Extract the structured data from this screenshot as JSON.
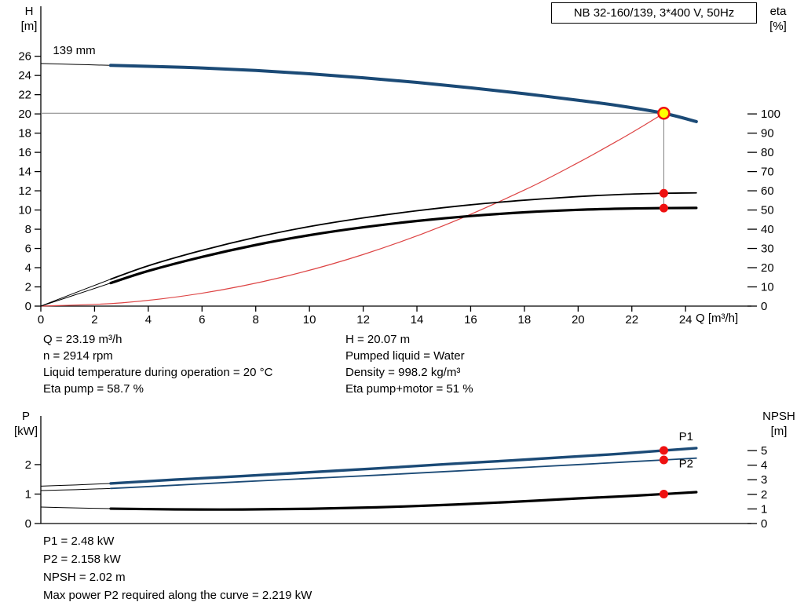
{
  "title_box": "NB 32-160/139, 3*400 V, 50Hz",
  "top_chart": {
    "ylabel_left_1": "H",
    "ylabel_left_2": "[m]",
    "ylabel_right_1": "eta",
    "ylabel_right_2": "[%]",
    "xlabel": "Q [m³/h]",
    "curve_label": "139 mm"
  },
  "bottom_chart": {
    "ylabel_left_1": "P",
    "ylabel_left_2": "[kW]",
    "ylabel_right_1": "NPSH",
    "ylabel_right_2": "[m]"
  },
  "operating_conditions": {
    "left": [
      "Q = 23.19 m³/h",
      "n = 2914 rpm",
      "Liquid temperature during operation = 20 °C",
      "Eta pump = 58.7 %"
    ],
    "right": [
      "H = 20.07 m",
      "Pumped liquid = Water",
      "Density = 998.2 kg/m³",
      "Eta pump+motor = 51 %"
    ]
  },
  "results": [
    "P1 = 2.48 kW",
    "P2 = 2.158 kW",
    "NPSH = 2.02 m",
    "Max power P2 required along the curve = 2.219 kW"
  ],
  "chart_data": [
    {
      "type": "line",
      "title": "NB 32-160/139, 3*400 V, 50Hz",
      "xlabel": "Q [m³/h]",
      "ylabel_left": "H [m]",
      "ylabel_right": "eta [%]",
      "grid": false,
      "xlim": [
        0,
        26.45
      ],
      "x_ticks": [
        0,
        2,
        4,
        6,
        8,
        10,
        12,
        14,
        16,
        18,
        20,
        22,
        24
      ],
      "ylim_left": [
        0,
        31.2
      ],
      "y_ticks_left": [
        0,
        2,
        4,
        6,
        8,
        10,
        12,
        14,
        16,
        18,
        20,
        22,
        24,
        26
      ],
      "ylim_right": [
        0,
        156
      ],
      "y_ticks_right": [
        0,
        10,
        20,
        30,
        40,
        50,
        60,
        70,
        80,
        90,
        100
      ],
      "duty_point": {
        "q_m3h": 23.19,
        "h_m": 20.07,
        "eta_pump_pct": 58.7,
        "eta_pump_motor_pct": 51
      },
      "series": [
        {
          "name": "pump-curve-lead",
          "axis": "left",
          "color": "#000000",
          "width": 1,
          "points": [
            [
              0,
              25.25
            ],
            [
              1.3,
              25.15
            ],
            [
              2.6,
              25.05
            ]
          ]
        },
        {
          "name": "pump-curve-139mm",
          "axis": "left",
          "color": "#1b4a76",
          "width": 4,
          "points": [
            [
              2.6,
              25.05
            ],
            [
              4,
              24.95
            ],
            [
              6,
              24.78
            ],
            [
              8,
              24.52
            ],
            [
              10,
              24.18
            ],
            [
              12,
              23.76
            ],
            [
              14,
              23.28
            ],
            [
              16,
              22.72
            ],
            [
              18,
              22.1
            ],
            [
              20,
              21.42
            ],
            [
              21.6,
              20.82
            ],
            [
              23.19,
              20.07
            ],
            [
              24.4,
              19.2
            ]
          ]
        },
        {
          "name": "system-curve",
          "axis": "left",
          "color": "#dd4444",
          "width": 1.2,
          "points": [
            [
              0,
              0
            ],
            [
              3,
              0.34
            ],
            [
              6,
              1.34
            ],
            [
              9,
              3.02
            ],
            [
              12,
              5.37
            ],
            [
              15,
              8.39
            ],
            [
              18,
              12.08
            ],
            [
              20,
              14.93
            ],
            [
              21.6,
              17.41
            ],
            [
              22.5,
              18.89
            ],
            [
              23.19,
              20.07
            ]
          ]
        },
        {
          "name": "eta-pump-lead",
          "axis": "right",
          "color": "#000000",
          "width": 1,
          "points": [
            [
              0,
              0
            ],
            [
              1.2,
              6.5
            ],
            [
              2.6,
              14
            ]
          ]
        },
        {
          "name": "eta-pump-curve",
          "axis": "right",
          "color": "#000000",
          "width": 1.8,
          "points": [
            [
              2.6,
              14
            ],
            [
              4,
              21
            ],
            [
              6,
              29
            ],
            [
              8,
              35.8
            ],
            [
              10,
              41.4
            ],
            [
              12,
              45.9
            ],
            [
              14,
              49.6
            ],
            [
              16,
              52.7
            ],
            [
              18,
              55.1
            ],
            [
              20,
              57
            ],
            [
              21.6,
              58.1
            ],
            [
              23.19,
              58.7
            ],
            [
              24.4,
              58.9
            ]
          ]
        },
        {
          "name": "eta-pump-motor-lead",
          "axis": "right",
          "color": "#000000",
          "width": 1,
          "points": [
            [
              0,
              0
            ],
            [
              1.2,
              5.5
            ],
            [
              2.6,
              12
            ]
          ]
        },
        {
          "name": "eta-pump-motor-curve",
          "axis": "right",
          "color": "#000000",
          "width": 3.2,
          "points": [
            [
              2.6,
              12
            ],
            [
              4,
              18.3
            ],
            [
              6,
              25.6
            ],
            [
              8,
              31.8
            ],
            [
              10,
              36.9
            ],
            [
              12,
              41
            ],
            [
              14,
              44.3
            ],
            [
              16,
              46.9
            ],
            [
              18,
              48.8
            ],
            [
              20,
              50.1
            ],
            [
              21.6,
              50.7
            ],
            [
              23.19,
              51
            ],
            [
              24.4,
              51.1
            ]
          ]
        }
      ],
      "guides": [
        {
          "axis": "left",
          "from": [
            0,
            20.07
          ],
          "to": [
            23.19,
            20.07
          ]
        },
        {
          "axis": "left",
          "from": [
            23.19,
            20.07
          ],
          "to": [
            23.19,
            10.15
          ]
        }
      ],
      "markers": [
        {
          "name": "eta-pump-point",
          "axis": "right",
          "x": 23.19,
          "y": 58.7,
          "r": 5.5,
          "fill": "#ee1111"
        },
        {
          "name": "eta-pump-motor-point",
          "axis": "right",
          "x": 23.19,
          "y": 51,
          "r": 5.5,
          "fill": "#ee1111"
        },
        {
          "name": "duty-point",
          "axis": "left",
          "x": 23.19,
          "y": 20.07,
          "r": 7,
          "fill": "#ffff00",
          "stroke": "#ee1111",
          "stroke_width": 2.5
        }
      ],
      "annotations": [
        {
          "name": "impeller-diameter-label",
          "text": "139 mm",
          "axis": "left",
          "x": 0.45,
          "y": 26.2,
          "color": "#000000"
        }
      ]
    },
    {
      "type": "line",
      "title": "",
      "xlabel": "",
      "ylabel_left": "P [kW]",
      "ylabel_right": "NPSH [m]",
      "grid": false,
      "xlim": [
        0,
        26.45
      ],
      "x_ticks": [],
      "ylim_left": [
        0,
        3.65
      ],
      "y_ticks_left": [
        0,
        1,
        2
      ],
      "ylim_right": [
        0,
        7.37
      ],
      "y_ticks_right": [
        0,
        1,
        2,
        3,
        4,
        5
      ],
      "duty_point": {
        "q_m3h": 23.19,
        "p1_kw": 2.48,
        "p2_kw": 2.158,
        "npsh_m": 2.02
      },
      "series": [
        {
          "name": "p1-lead",
          "axis": "left",
          "color": "#000000",
          "width": 1,
          "points": [
            [
              0,
              1.27
            ],
            [
              1.3,
              1.31
            ],
            [
              2.6,
              1.36
            ]
          ]
        },
        {
          "name": "p1-curve",
          "axis": "left",
          "color": "#1b4a76",
          "width": 3.4,
          "points": [
            [
              2.6,
              1.36
            ],
            [
              5,
              1.49
            ],
            [
              7.5,
              1.61
            ],
            [
              10,
              1.74
            ],
            [
              12.5,
              1.87
            ],
            [
              15,
              2.01
            ],
            [
              17.5,
              2.14
            ],
            [
              20,
              2.28
            ],
            [
              21.6,
              2.37
            ],
            [
              23.19,
              2.48
            ],
            [
              24.4,
              2.56
            ]
          ]
        },
        {
          "name": "p2-lead",
          "axis": "left",
          "color": "#000000",
          "width": 1,
          "points": [
            [
              0,
              1.12
            ],
            [
              1.3,
              1.15
            ],
            [
              2.6,
              1.19
            ]
          ]
        },
        {
          "name": "p2-curve",
          "axis": "left",
          "color": "#1b4a76",
          "width": 1.8,
          "points": [
            [
              2.6,
              1.19
            ],
            [
              5,
              1.3
            ],
            [
              7.5,
              1.42
            ],
            [
              10,
              1.53
            ],
            [
              12.5,
              1.64
            ],
            [
              15,
              1.76
            ],
            [
              17.5,
              1.88
            ],
            [
              20,
              2.0
            ],
            [
              21.6,
              2.08
            ],
            [
              23.19,
              2.158
            ],
            [
              24.4,
              2.22
            ]
          ]
        },
        {
          "name": "npsh-lead",
          "axis": "right",
          "color": "#000000",
          "width": 1,
          "points": [
            [
              0,
              1.13
            ],
            [
              1.3,
              1.07
            ],
            [
              2.6,
              1.02
            ]
          ]
        },
        {
          "name": "npsh-curve",
          "axis": "right",
          "color": "#000000",
          "width": 3.2,
          "points": [
            [
              2.6,
              1.02
            ],
            [
              5,
              0.97
            ],
            [
              7.5,
              0.96
            ],
            [
              10,
              1.01
            ],
            [
              12.5,
              1.11
            ],
            [
              15,
              1.27
            ],
            [
              17.5,
              1.48
            ],
            [
              20,
              1.72
            ],
            [
              21.6,
              1.86
            ],
            [
              23.19,
              2.02
            ],
            [
              24.4,
              2.15
            ]
          ]
        }
      ],
      "guides": [],
      "markers": [
        {
          "name": "p1-point",
          "axis": "left",
          "x": 23.19,
          "y": 2.48,
          "r": 5.5,
          "fill": "#ee1111"
        },
        {
          "name": "p2-point",
          "axis": "left",
          "x": 23.19,
          "y": 2.158,
          "r": 5.5,
          "fill": "#ee1111"
        },
        {
          "name": "npsh-point",
          "axis": "right",
          "x": 23.19,
          "y": 2.02,
          "r": 5.5,
          "fill": "#ee1111"
        }
      ],
      "annotations": [
        {
          "name": "p1-label",
          "text": "P1",
          "axis": "left",
          "x": 23.75,
          "y": 2.82,
          "color": "#2f76b5"
        },
        {
          "name": "p2-label",
          "text": "P2",
          "axis": "left",
          "x": 23.75,
          "y": 1.9,
          "color": "#2f76b5"
        }
      ]
    }
  ]
}
